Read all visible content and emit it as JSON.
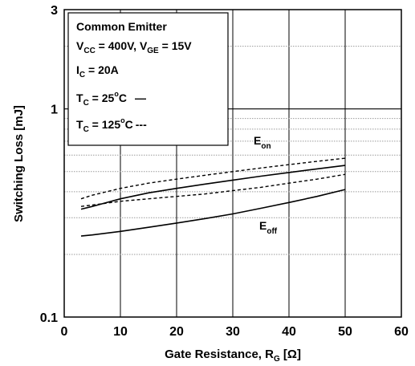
{
  "chart_data": {
    "type": "line",
    "xlabel": "Gate Resistance, R",
    "xlabel_sub": "G",
    "xlabel_unit": " [Ω]",
    "ylabel": "Switching Loss [mJ]",
    "xlim": [
      0,
      60
    ],
    "ylim": [
      0.1,
      3
    ],
    "yscale": "log",
    "x_ticks": [
      "0",
      "10",
      "20",
      "30",
      "40",
      "50",
      "60"
    ],
    "x_tick_values": [
      0,
      10,
      20,
      30,
      40,
      50,
      60
    ],
    "y_ticks": [
      "0.1",
      "1",
      "3"
    ],
    "y_tick_values": [
      0.1,
      1,
      3
    ],
    "grid": true,
    "legend": {
      "placement": "top-left",
      "line1": "Common Emitter",
      "vcc_label": "V",
      "vcc_sub": "CC",
      "vcc_value": " = 400V, V",
      "vge_sub": "GE",
      "vge_value": " = 15V",
      "ic_label": "I",
      "ic_sub": "C",
      "ic_value": " = 20A",
      "tc_label": "T",
      "tc_sub": "C",
      "tc25_value": " = 25",
      "tc125_value": " = 125",
      "deg_sup": "o",
      "unit_c": "C",
      "solid_marker": "—",
      "dashed_marker": "---"
    },
    "series_labels": {
      "eon_main": "E",
      "eon_sub": "on",
      "eoff_main": "E",
      "eoff_sub": "off"
    },
    "series": [
      {
        "name": "Eon TC=25°C",
        "style": "solid",
        "x": [
          3,
          5,
          10,
          15,
          20,
          25,
          30,
          35,
          40,
          45,
          50
        ],
        "values": [
          0.33,
          0.34,
          0.37,
          0.395,
          0.415,
          0.435,
          0.455,
          0.475,
          0.495,
          0.515,
          0.535
        ]
      },
      {
        "name": "Eon TC=125°C",
        "style": "dashed",
        "x": [
          3,
          5,
          10,
          15,
          20,
          25,
          30,
          35,
          40,
          45,
          50
        ],
        "values": [
          0.37,
          0.385,
          0.415,
          0.44,
          0.46,
          0.48,
          0.5,
          0.52,
          0.54,
          0.56,
          0.58
        ]
      },
      {
        "name": "Eoff TC=125°C",
        "style": "dashed",
        "x": [
          3,
          5,
          10,
          15,
          20,
          25,
          30,
          35,
          40,
          45,
          50
        ],
        "values": [
          0.34,
          0.345,
          0.36,
          0.37,
          0.38,
          0.39,
          0.405,
          0.42,
          0.44,
          0.46,
          0.485
        ]
      },
      {
        "name": "Eoff TC=25°C",
        "style": "solid",
        "x": [
          3,
          5,
          10,
          15,
          20,
          25,
          30,
          35,
          40,
          45,
          50
        ],
        "values": [
          0.245,
          0.248,
          0.258,
          0.27,
          0.283,
          0.297,
          0.313,
          0.333,
          0.355,
          0.38,
          0.41
        ]
      }
    ]
  }
}
